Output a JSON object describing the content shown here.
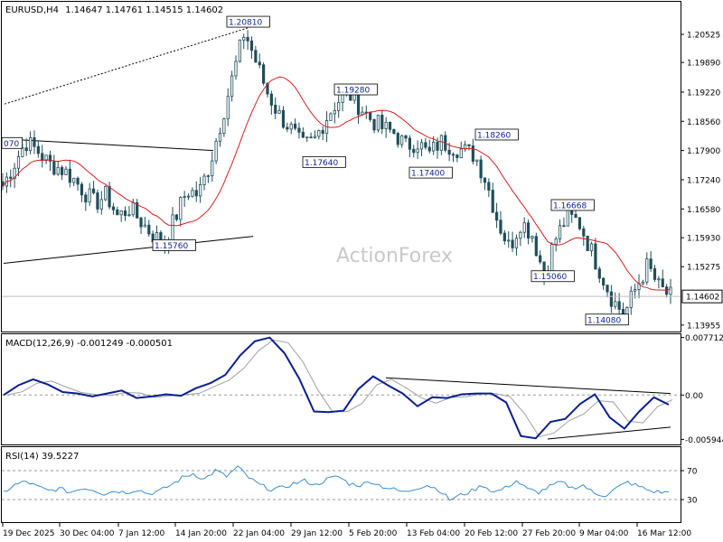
{
  "header": {
    "symbol": "EURUSD,H4",
    "ohlc": "1.14647 1.14761 1.14515 1.14602"
  },
  "watermark": "ActionForex",
  "colors": {
    "candle": "#1f4e5a",
    "ma": "#d42020",
    "macd": "#0a1f8f",
    "signal": "#a0a0a0",
    "rsi": "#3a8fd0",
    "trend": "#000000"
  },
  "chart_data": [
    {
      "type": "candlestick",
      "y_ticks": [
        "1.20525",
        "1.19890",
        "1.19220",
        "1.18560",
        "1.17900",
        "1.17240",
        "1.16580",
        "1.15930",
        "1.15275",
        "1.14602",
        "1.13955"
      ],
      "ylim": [
        1.1383,
        1.2124
      ],
      "last_price": "1.14602",
      "annotations": [
        {
          "label": "1.20810",
          "value": 1.2081
        },
        {
          "label": "1.19280",
          "value": 1.1928
        },
        {
          "label": "1.17640",
          "value": 1.1764
        },
        {
          "label": "1.17400",
          "value": 1.174
        },
        {
          "label": "1.18260",
          "value": 1.1826
        },
        {
          "label": "1.16668",
          "value": 1.16668
        },
        {
          "label": "1.15760",
          "value": 1.1576
        },
        {
          "label": "1.15060",
          "value": 1.1506
        },
        {
          "label": "1.14080",
          "value": 1.1408
        },
        {
          "label": "070",
          "value": 1.1807
        }
      ],
      "close_path": [
        1.171,
        1.176,
        1.181,
        1.179,
        1.176,
        1.175,
        1.173,
        1.17,
        1.167,
        1.169,
        1.164,
        1.166,
        1.163,
        1.16,
        1.158,
        1.164,
        1.17,
        1.169,
        1.176,
        1.186,
        1.196,
        1.206,
        1.199,
        1.192,
        1.187,
        1.184,
        1.18,
        1.181,
        1.186,
        1.19,
        1.192,
        1.189,
        1.186,
        1.184,
        1.183,
        1.18,
        1.181,
        1.178,
        1.181,
        1.18,
        1.179,
        1.178,
        1.172,
        1.163,
        1.157,
        1.163,
        1.16,
        1.151,
        1.159,
        1.164,
        1.163,
        1.157,
        1.151,
        1.145,
        1.142,
        1.148,
        1.153,
        1.148,
        1.146
      ]
    },
    {
      "type": "line",
      "title": "MACD(12,26,9) -0.001249 -0.000501",
      "y_ticks": [
        "0.007712",
        "0.00",
        "-0.005944"
      ],
      "ylim": [
        -0.0065,
        0.0079
      ],
      "series": [
        {
          "name": "MACD",
          "values": [
            0.0,
            0.0013,
            0.0021,
            0.0014,
            0.0004,
            0.0002,
            -0.0002,
            0.0002,
            0.0006,
            -0.0004,
            -0.0002,
            0.0001,
            -0.0001,
            0.0009,
            0.0016,
            0.0027,
            0.0053,
            0.0072,
            0.0077,
            0.0056,
            0.0022,
            -0.0022,
            -0.0023,
            -0.0021,
            0.0008,
            0.0025,
            0.0013,
            0.0002,
            -0.0015,
            -0.0003,
            -0.0004,
            0.0001,
            0.0002,
            0.0002,
            -0.001,
            -0.0055,
            -0.0058,
            -0.0036,
            -0.0032,
            -0.0012,
            0.0001,
            -0.003,
            -0.0045,
            -0.0022,
            -0.0003,
            -0.0013
          ]
        }
      ]
    },
    {
      "type": "line",
      "title": "RSI(14) 39.5227",
      "y_ticks": [
        "70",
        "30"
      ],
      "ylim": [
        0,
        100
      ],
      "series": [
        {
          "name": "RSI",
          "values": [
            40,
            50,
            55,
            48,
            42,
            45,
            40,
            46,
            44,
            38,
            42,
            40,
            44,
            38,
            42,
            50,
            60,
            66,
            58,
            70,
            62,
            75,
            60,
            50,
            44,
            46,
            52,
            56,
            50,
            58,
            62,
            52,
            50,
            55,
            48,
            44,
            40,
            46,
            50,
            44,
            30,
            36,
            42,
            50,
            40,
            46,
            56,
            44,
            40,
            48,
            54,
            46,
            50,
            38,
            36,
            46,
            54,
            48,
            42,
            40
          ]
        }
      ]
    }
  ],
  "x_axis_labels": [
    "19 Dec 2025",
    "30 Dec 04:00",
    "7 Jan 12:00",
    "14 Jan 20:00",
    "22 Jan 04:00",
    "29 Jan 12:00",
    "5 Feb 20:00",
    "13 Feb 04:00",
    "20 Feb 12:00",
    "27 Feb 20:00",
    "9 Mar 04:00",
    "16 Mar 12:00"
  ]
}
